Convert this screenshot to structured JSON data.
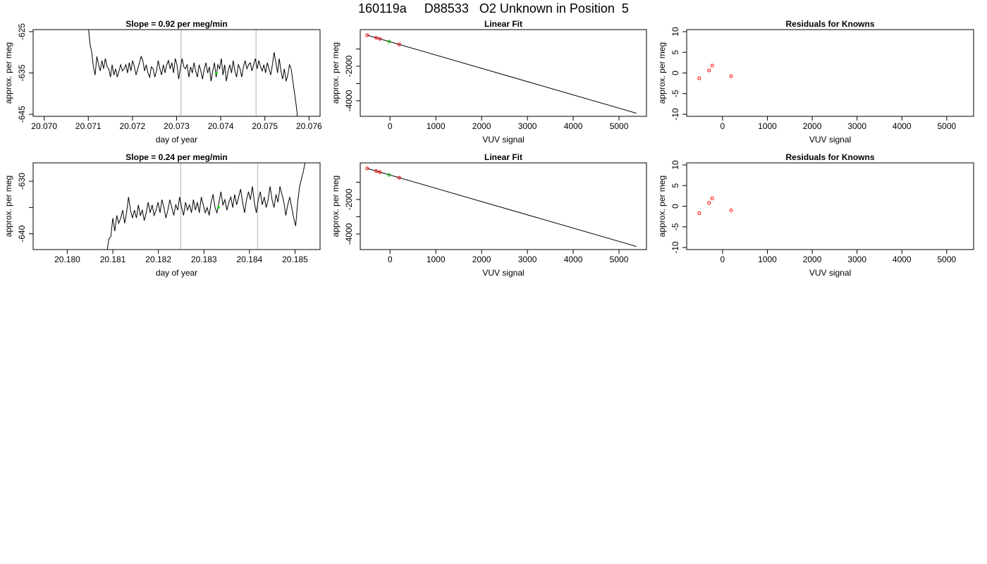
{
  "page_title": "160119a     D88533   O2 Unknown in Position  5",
  "colors": {
    "line": "#000000",
    "vline": "#bebebe",
    "known": "#ff0000",
    "unknown": "#00cc00"
  },
  "chart_data": [
    {
      "type": "line",
      "title": "Slope =  0.92  per meg/min",
      "xlabel": "day of year",
      "ylabel": "approx. per meg",
      "xlim": [
        20.06975,
        20.07625
      ],
      "ylim": [
        -645.5,
        -624.5
      ],
      "xticks": [
        20.07,
        20.071,
        20.072,
        20.073,
        20.074,
        20.075,
        20.076
      ],
      "xtick_labels": [
        "20.070",
        "20.071",
        "20.072",
        "20.073",
        "20.074",
        "20.075",
        "20.076"
      ],
      "yticks": [
        -645,
        -635,
        -625
      ],
      "ytick_labels": [
        "-645",
        "-635",
        "-625"
      ],
      "vlines": [
        20.0731,
        20.0748
      ],
      "series": [
        {
          "x_start": 20.071,
          "x_end": 20.07575,
          "y": [
            -624,
            -628,
            -630,
            -633.5,
            -635.5,
            -631,
            -633,
            -634.5,
            -632,
            -634,
            -631.5,
            -633.5,
            -634,
            -636,
            -633,
            -635.5,
            -634,
            -636,
            -634.5,
            -633,
            -634.5,
            -634,
            -633,
            -635,
            -632.5,
            -634.5,
            -632,
            -633.5,
            -635.5,
            -634,
            -632.5,
            -631,
            -632,
            -634.5,
            -633,
            -635,
            -636,
            -633.5,
            -634,
            -636,
            -634.5,
            -632,
            -634,
            -635.5,
            -633,
            -635,
            -633,
            -632,
            -634,
            -632.5,
            -635,
            -631.5,
            -633,
            -636.5,
            -634,
            -631.5,
            -633.5,
            -634,
            -633,
            -636,
            -633.5,
            -635,
            -632.5,
            -634.5,
            -636,
            -633,
            -634.5,
            -636.5,
            -634,
            -632.5,
            -635,
            -633.5,
            -637,
            -634.5,
            -632.5,
            -636,
            -633,
            -634,
            -631.5,
            -635.5,
            -633,
            -637,
            -634.5,
            -633,
            -635,
            -632,
            -634.5,
            -636,
            -633,
            -634,
            -636,
            -633.5,
            -632,
            -634,
            -633,
            -632.5,
            -634.5,
            -633,
            -631.5,
            -634,
            -632,
            -633.5,
            -634.5,
            -633,
            -635,
            -632.5,
            -634,
            -635.5,
            -633,
            -630,
            -632.5,
            -635,
            -631.5,
            -634.5,
            -636.5,
            -634,
            -637,
            -635.5,
            -633,
            -634,
            -637,
            -640,
            -643,
            -647
          ]
        }
      ],
      "marker": {
        "x": 20.0739,
        "y": -635
      }
    },
    {
      "type": "scatter",
      "title": "Linear Fit",
      "xlabel": "VUV signal",
      "ylabel": "approx. per meg",
      "xlim": [
        -650,
        5600
      ],
      "ylim": [
        -4900,
        120
      ],
      "xticks": [
        0,
        1000,
        2000,
        3000,
        4000,
        5000
      ],
      "xtick_labels": [
        "0",
        "1000",
        "2000",
        "3000",
        "4000",
        "5000"
      ],
      "yticks": [
        -4000,
        -3000,
        -2000,
        -1000
      ],
      "ytick_labels": [
        "-4000",
        "",
        "-2000",
        ""
      ],
      "fit_line": {
        "x": [
          -500,
          5380
        ],
        "y": [
          -200,
          -4720
        ]
      },
      "known_points": [
        {
          "x": -500,
          "y": -200
        },
        {
          "x": -300,
          "y": -355
        },
        {
          "x": -220,
          "y": -420
        },
        {
          "x": 200,
          "y": -740
        }
      ],
      "unknown_point": {
        "x": -20,
        "y": -580
      }
    },
    {
      "type": "scatter",
      "title": "Residuals for Knowns",
      "xlabel": "VUV signal",
      "ylabel": "approx. per meg",
      "xlim": [
        -800,
        5600
      ],
      "ylim": [
        -10.5,
        10.5
      ],
      "xticks": [
        0,
        1000,
        2000,
        3000,
        4000,
        5000
      ],
      "xtick_labels": [
        "0",
        "1000",
        "2000",
        "3000",
        "4000",
        "5000"
      ],
      "yticks": [
        -10,
        -5,
        0,
        5,
        10
      ],
      "ytick_labels": [
        "-10",
        "-5",
        "0",
        "5",
        "10"
      ],
      "known_points": [
        {
          "x": -520,
          "y": -1.3
        },
        {
          "x": -300,
          "y": 0.6
        },
        {
          "x": -230,
          "y": 1.8
        },
        {
          "x": 190,
          "y": -0.8
        }
      ]
    },
    {
      "type": "line",
      "title": "Slope =  0.24  per meg/min",
      "xlabel": "day of year",
      "ylabel": "approx. per meg",
      "xlim": [
        20.17925,
        20.18555
      ],
      "ylim": [
        -643,
        -626.5
      ],
      "xticks": [
        20.18,
        20.181,
        20.182,
        20.183,
        20.184,
        20.185
      ],
      "xtick_labels": [
        "20.180",
        "20.181",
        "20.182",
        "20.183",
        "20.184",
        "20.185"
      ],
      "yticks": [
        -640,
        -635,
        -630
      ],
      "ytick_labels": [
        "-640",
        "",
        "-630"
      ],
      "vlines": [
        20.18249,
        20.18418
      ],
      "series": [
        {
          "x_start": 20.18087,
          "x_end": 20.18523,
          "y": [
            -643.5,
            -641,
            -640.5,
            -637,
            -639.5,
            -636.5,
            -638,
            -637,
            -635.5,
            -638,
            -636,
            -633,
            -635.5,
            -637,
            -635.5,
            -637,
            -634.5,
            -636.5,
            -635.5,
            -637.5,
            -636,
            -634,
            -636,
            -634.5,
            -636.5,
            -635.5,
            -634,
            -636,
            -633.5,
            -635,
            -637,
            -635.5,
            -633.5,
            -635,
            -636.5,
            -634.5,
            -635.5,
            -633,
            -635,
            -636.5,
            -634,
            -635.5,
            -634.5,
            -636,
            -633.5,
            -635.5,
            -634,
            -636,
            -633,
            -634.5,
            -636,
            -635,
            -636.5,
            -634,
            -632.5,
            -635,
            -636,
            -634,
            -632,
            -634.5,
            -633.5,
            -635.5,
            -634,
            -633,
            -635,
            -632.5,
            -634.5,
            -633,
            -631.5,
            -634,
            -636,
            -633.5,
            -632,
            -633.5,
            -631,
            -634,
            -636,
            -633.5,
            -632,
            -634.5,
            -633,
            -635,
            -633.5,
            -631,
            -633.5,
            -635,
            -632.5,
            -634,
            -631,
            -632.5,
            -634,
            -636.5,
            -634.5,
            -633,
            -635,
            -637,
            -638.5,
            -634,
            -631,
            -629.5,
            -628,
            -626
          ]
        }
      ],
      "marker": {
        "x": 20.18332,
        "y": -635
      }
    },
    {
      "type": "scatter",
      "title": "Linear Fit",
      "xlabel": "VUV signal",
      "ylabel": "approx. per meg",
      "xlim": [
        -650,
        5600
      ],
      "ylim": [
        -4900,
        120
      ],
      "xticks": [
        0,
        1000,
        2000,
        3000,
        4000,
        5000
      ],
      "xtick_labels": [
        "0",
        "1000",
        "2000",
        "3000",
        "4000",
        "5000"
      ],
      "yticks": [
        -4000,
        -3000,
        -2000,
        -1000
      ],
      "ytick_labels": [
        "-4000",
        "",
        "-2000",
        ""
      ],
      "fit_line": {
        "x": [
          -500,
          5380
        ],
        "y": [
          -200,
          -4720
        ]
      },
      "known_points": [
        {
          "x": -500,
          "y": -200
        },
        {
          "x": -300,
          "y": -355
        },
        {
          "x": -220,
          "y": -420
        },
        {
          "x": 200,
          "y": -740
        }
      ],
      "unknown_point": {
        "x": -20,
        "y": -580
      }
    },
    {
      "type": "scatter",
      "title": "Residuals for Knowns",
      "xlabel": "VUV signal",
      "ylabel": "approx. per meg",
      "xlim": [
        -800,
        5600
      ],
      "ylim": [
        -10.5,
        10.5
      ],
      "xticks": [
        0,
        1000,
        2000,
        3000,
        4000,
        5000
      ],
      "xtick_labels": [
        "0",
        "1000",
        "2000",
        "3000",
        "4000",
        "5000"
      ],
      "yticks": [
        -10,
        -5,
        0,
        5,
        10
      ],
      "ytick_labels": [
        "-10",
        "-5",
        "0",
        "5",
        "10"
      ],
      "known_points": [
        {
          "x": -520,
          "y": -1.7
        },
        {
          "x": -300,
          "y": 0.8
        },
        {
          "x": -230,
          "y": 1.9
        },
        {
          "x": 190,
          "y": -1.0
        }
      ]
    }
  ]
}
